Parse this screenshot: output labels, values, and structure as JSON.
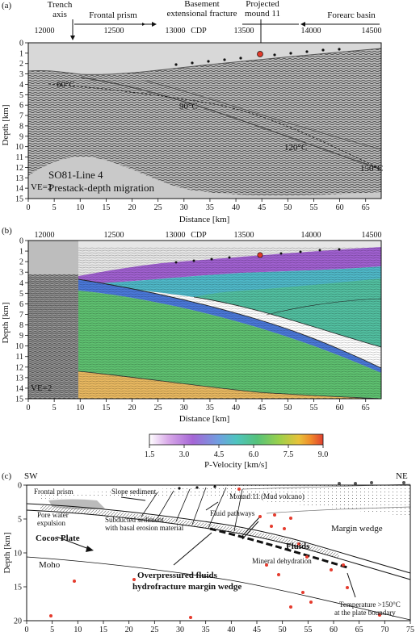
{
  "panel_a": {
    "label": "(a)",
    "cdp_label": "CDP",
    "cdp_ticks": [
      "12000",
      "12500",
      "13000",
      "13500",
      "14000",
      "14500"
    ],
    "annotations": {
      "trench_axis_1": "Trench",
      "trench_axis_2": "axis",
      "frontal_prism": "Frontal prism",
      "basement_1": "Basement",
      "basement_2": "extensional fracture",
      "projected_1": "Projected",
      "projected_2": "mound 11",
      "forearc": "Forearc basin"
    },
    "isotherms": [
      "60°C",
      "90°C",
      "120°C",
      "150°C"
    ],
    "title_1": "SO81-Line 4",
    "title_2": "Prestack-depth migration",
    "ve": "VE=2",
    "ylabel": "Depth [km]",
    "xlabel": "Distance [km]",
    "depth_ticks": [
      "0",
      "1",
      "2",
      "3",
      "4",
      "5",
      "6",
      "7",
      "8",
      "9",
      "10",
      "11",
      "12",
      "13",
      "14",
      "15"
    ],
    "dist_ticks": [
      "0",
      "5",
      "10",
      "15",
      "20",
      "25",
      "30",
      "35",
      "40",
      "45",
      "50",
      "55",
      "60",
      "65"
    ]
  },
  "panel_b": {
    "label": "(b)",
    "cdp_label": "CDP",
    "cdp_ticks": [
      "12000",
      "12500",
      "13000",
      "13500",
      "14000",
      "14500"
    ],
    "ve": "VE=2",
    "ylabel": "Depth [km]",
    "xlabel": "Distance [km]",
    "depth_ticks": [
      "0",
      "1",
      "2",
      "3",
      "4",
      "5",
      "6",
      "7",
      "8",
      "9",
      "10",
      "11",
      "12",
      "13",
      "14",
      "15"
    ],
    "dist_ticks": [
      "0",
      "5",
      "10",
      "15",
      "20",
      "25",
      "30",
      "35",
      "40",
      "45",
      "50",
      "55",
      "60",
      "65"
    ],
    "colorbar": {
      "ticks": [
        "1.5",
        "3.0",
        "4.5",
        "6.0",
        "7.5",
        "9.0"
      ],
      "label": "P-Velocity  [km/s]",
      "colors": [
        "#ffffff",
        "#d8a8e8",
        "#a566d6",
        "#6fa0e0",
        "#4fc4c0",
        "#55c27a",
        "#9cd04a",
        "#e8c23a",
        "#f08a2a",
        "#e04030"
      ]
    }
  },
  "panel_c": {
    "label": "(c)",
    "sw": "SW",
    "ne": "NE",
    "ylabel": "Depth [km]",
    "depth_ticks": [
      "0",
      "5",
      "10",
      "15",
      "20"
    ],
    "dist_ticks": [
      "0",
      "5",
      "10",
      "15",
      "20",
      "25",
      "30",
      "35",
      "40",
      "45",
      "50",
      "55",
      "60",
      "65",
      "70",
      "75"
    ],
    "labels": {
      "frontal_prism": "Frontal prism",
      "slope_sediment": "Slope sediment",
      "mound11": "Mound 11 (Mud volcano)",
      "fluid_pathways": "Fluid pathways",
      "pore_water_1": "Pore water",
      "pore_water_2": "expulsion",
      "subducted_1": "Subducted sediment",
      "subducted_2": "with basal erosion material",
      "margin_wedge": "Margin wedge",
      "fluids": "Fluids",
      "cocos": "Cocos Plate",
      "mineral": "Mineral dehydration",
      "moho": "Moho",
      "overpressured_1": "Overpressured fluids",
      "overpressured_2": "hydrofracture margin wedge",
      "temperature_1": "Temperature >150°C",
      "temperature_2": "at the plate boundary"
    }
  }
}
